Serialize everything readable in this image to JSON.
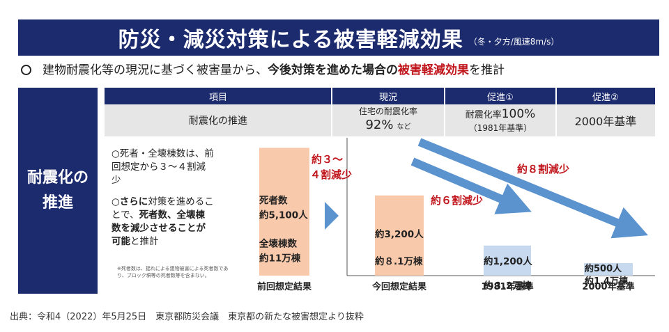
{
  "title": {
    "main": "防災・減災対策による被害軽減効果",
    "sub": "（冬・夕方/風速8m/s）"
  },
  "summary": {
    "part1": "建物耐震化等の現況に基づく被害量から、",
    "part2": "今後対策を進めた場合の",
    "part3": "被害軽減効果",
    "part4": "を推計"
  },
  "left_label": {
    "line1": "耐震化の",
    "line2": "推進"
  },
  "table": {
    "headers": [
      "項目",
      "現況",
      "促進①",
      "促進②"
    ],
    "item": "耐震化の推進",
    "current_line1": "住宅の耐震化率",
    "current_value": "92%",
    "current_suffix": "など",
    "promo1_prefix": "耐震化率",
    "promo1_value": "100%",
    "promo1_sub": "（1981年基準）",
    "promo2": "2000年基準"
  },
  "notes": {
    "p1_line1": "○死者・全壊棟数は、前",
    "p1_line2": "回想定から３～４割減",
    "p1_line3": "少",
    "p2_a": "○",
    "p2_b": "さらに",
    "p2_c": "対策を進めるこ",
    "p2_line2_a": "とで、",
    "p2_line2_b": "死者数、全壊棟",
    "p2_line3": "数を減少させることが",
    "p2_line4_a": "可能",
    "p2_line4_b": "と推計",
    "small": "※死者数は、揺れによる建物被害による死者数であり、ブロック塀等の死者数等を含まない。"
  },
  "chart_data": {
    "type": "bar",
    "categories": [
      "前回想定結果",
      "今回想定結果",
      "1981年基準",
      "2000年基準"
    ],
    "series": [
      {
        "values": [
          5100,
          3200,
          1200,
          500
        ]
      }
    ],
    "bar_labels": [
      [
        "死者数",
        "約5,100人",
        "全壊棟数",
        "約11万棟"
      ],
      [
        "約3,200人",
        "約８.1万棟"
      ],
      [
        "約1,200人",
        "約３.2万棟"
      ],
      [
        "約500人",
        "約1.4万棟"
      ]
    ],
    "annotations": {
      "reduce_34_line1": "約３～",
      "reduce_34_line2": "４割減少",
      "reduce_6": "約６割減少",
      "reduce_8": "約８割減少"
    },
    "colors": {
      "bar_previous": "#f9c9ab",
      "bar_current": "#f9c9ab",
      "bar_1981": "#c6d9ee",
      "bar_2000": "#c6d9ee",
      "arrow": "#5b93cf",
      "annotation": "#c0161c"
    },
    "ylim": [
      0,
      5500
    ]
  },
  "source": "出典：令和4（2022）年5月25日　東京都防災会議　東京都の新たな被害想定より抜粋"
}
